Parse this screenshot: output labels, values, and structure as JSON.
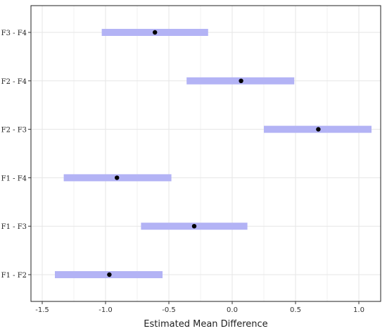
{
  "chart_data": {
    "type": "interval",
    "xlabel": "Estimated Mean Difference",
    "xlim": [
      -1.5,
      1.1
    ],
    "xticks": [
      -1.5,
      -1.0,
      -0.5,
      0.0,
      0.5,
      1.0
    ],
    "xtick_labels": [
      "-1.5",
      "-1.0",
      "-0.5",
      "0.0",
      "0.5",
      "1.0"
    ],
    "grid": true,
    "point_color": "#000000",
    "interval_color": "#b3b3f5",
    "categories": [
      "F3 - F4",
      "F2 - F4",
      "F2 - F3",
      "F1 - F4",
      "F1 - F3",
      "F1 - F2"
    ],
    "estimates": [
      -0.61,
      0.07,
      0.68,
      -0.91,
      -0.3,
      -0.97
    ],
    "lower": [
      -1.03,
      -0.36,
      0.25,
      -1.33,
      -0.72,
      -1.4
    ],
    "upper": [
      -0.19,
      0.49,
      1.1,
      -0.48,
      0.12,
      -0.55
    ]
  }
}
